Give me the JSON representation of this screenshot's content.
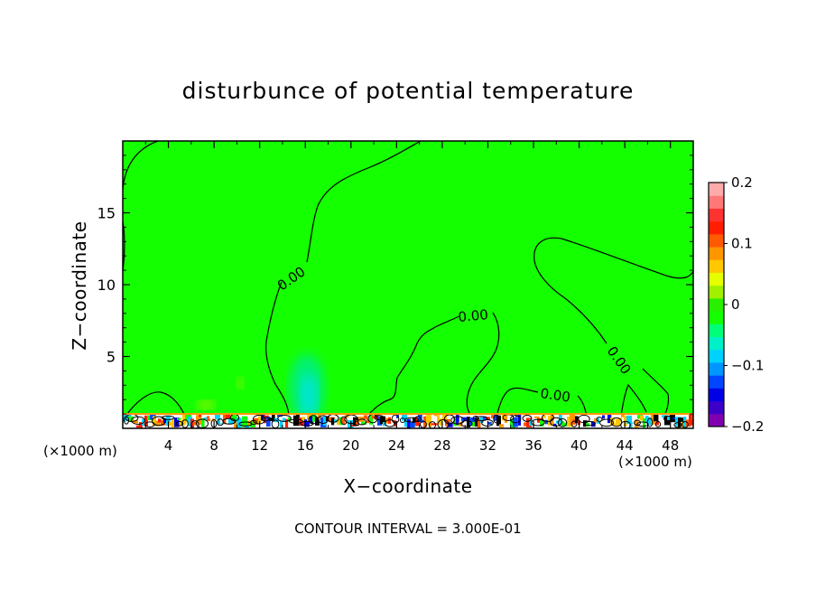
{
  "chart_data": {
    "type": "heatmap",
    "title": "disturbunce of potential temperature",
    "xlabel": "X−coordinate",
    "ylabel": "Z−coordinate",
    "x_unit": "(×1000 m)",
    "xlim": [
      0,
      50
    ],
    "ylim": [
      0,
      20
    ],
    "x_ticks": [
      "4",
      "8",
      "12",
      "16",
      "20",
      "24",
      "28",
      "32",
      "36",
      "40",
      "44",
      "48"
    ],
    "y_ticks": [
      "5",
      "10",
      "15"
    ],
    "colorbar": {
      "range": [
        -0.2,
        0.2
      ],
      "tick_labels": [
        "0.2",
        "0.1",
        "0",
        "−0.1",
        "−0.2"
      ],
      "tick_values": [
        0.2,
        0.1,
        0,
        -0.1,
        -0.2
      ],
      "colors": [
        "#8000b0",
        "#3c00c8",
        "#0000e6",
        "#0046ff",
        "#0096ff",
        "#00d2ff",
        "#00f0c8",
        "#00ff78",
        "#14ff00",
        "#28f000",
        "#a0f000",
        "#e6ff00",
        "#ffc800",
        "#ff9600",
        "#ff5a00",
        "#ff1e00",
        "#ff3232",
        "#ff7878",
        "#ffaaaa"
      ]
    },
    "contour_label": "0.00",
    "contour_interval_text": "CONTOUR INTERVAL = 3.000E-01",
    "background_value": 0
  }
}
